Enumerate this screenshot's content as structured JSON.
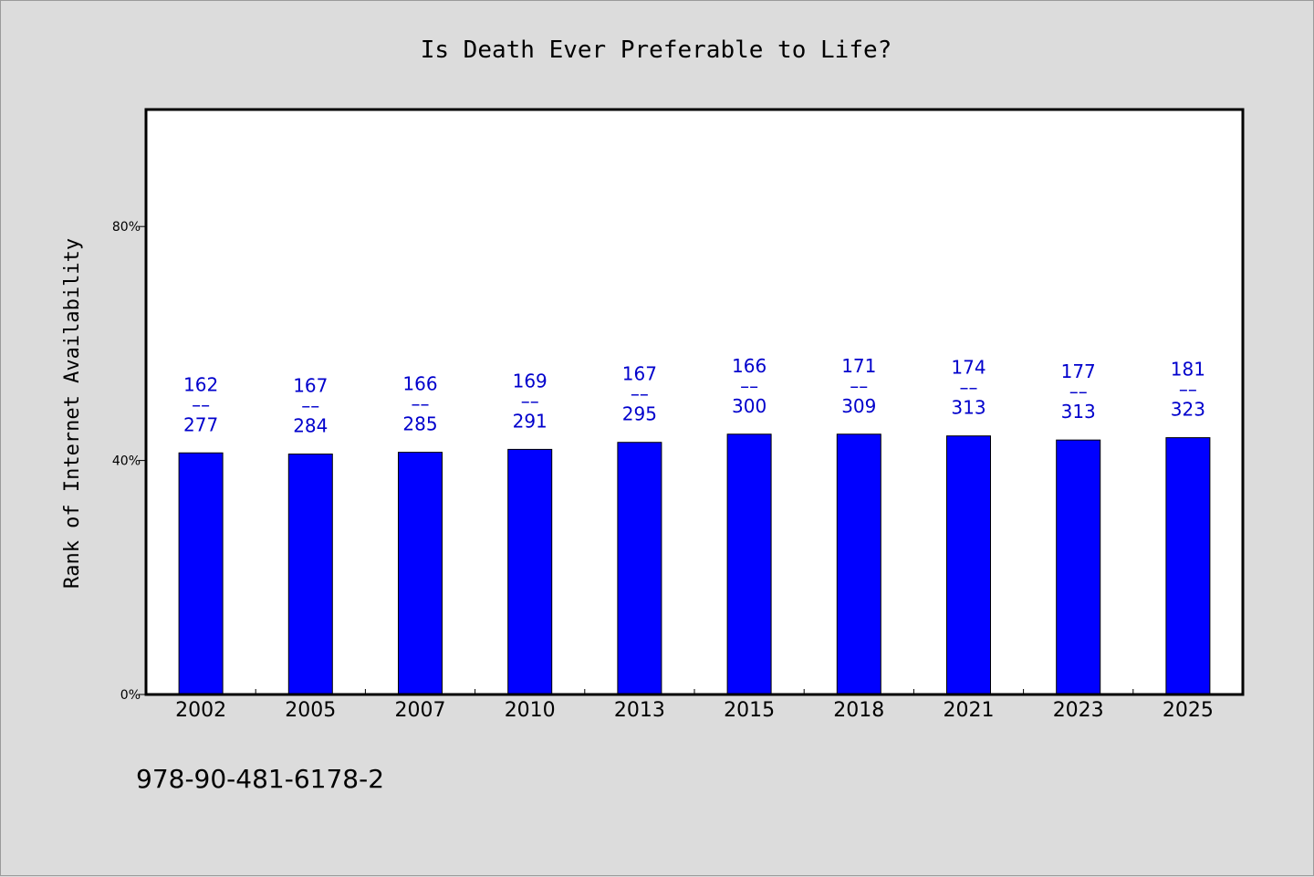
{
  "chart_data": {
    "type": "bar",
    "title": "Is Death Ever Preferable to Life?",
    "xlabel": "",
    "ylabel": "Rank of Internet Availability",
    "categories": [
      "2002",
      "2005",
      "2007",
      "2010",
      "2013",
      "2015",
      "2018",
      "2021",
      "2023",
      "2025"
    ],
    "values": [
      41.3,
      41.1,
      41.4,
      41.9,
      43.1,
      44.5,
      44.5,
      44.2,
      43.5,
      43.9
    ],
    "data_labels": [
      {
        "top": "162",
        "mid": "––",
        "bottom": "277"
      },
      {
        "top": "167",
        "mid": "––",
        "bottom": "284"
      },
      {
        "top": "166",
        "mid": "––",
        "bottom": "285"
      },
      {
        "top": "169",
        "mid": "––",
        "bottom": "291"
      },
      {
        "top": "167",
        "mid": "––",
        "bottom": "295"
      },
      {
        "top": "166",
        "mid": "––",
        "bottom": "300"
      },
      {
        "top": "171",
        "mid": "––",
        "bottom": "309"
      },
      {
        "top": "174",
        "mid": "––",
        "bottom": "313"
      },
      {
        "top": "177",
        "mid": "––",
        "bottom": "313"
      },
      {
        "top": "181",
        "mid": "––",
        "bottom": "323"
      }
    ],
    "ylim": [
      0,
      100
    ],
    "yticks": [
      {
        "value": 0,
        "label": "0%"
      },
      {
        "value": 40,
        "label": "40%"
      },
      {
        "value": 80,
        "label": "80%"
      }
    ],
    "grid": false,
    "legend": "none",
    "colors": {
      "bar": "#0000ff",
      "bar_edge": "#000000",
      "label": "#0000cc",
      "background": "#dcdcdc",
      "plot_background": "#ffffff"
    }
  },
  "footer": {
    "text": "978-90-481-6178-2"
  }
}
